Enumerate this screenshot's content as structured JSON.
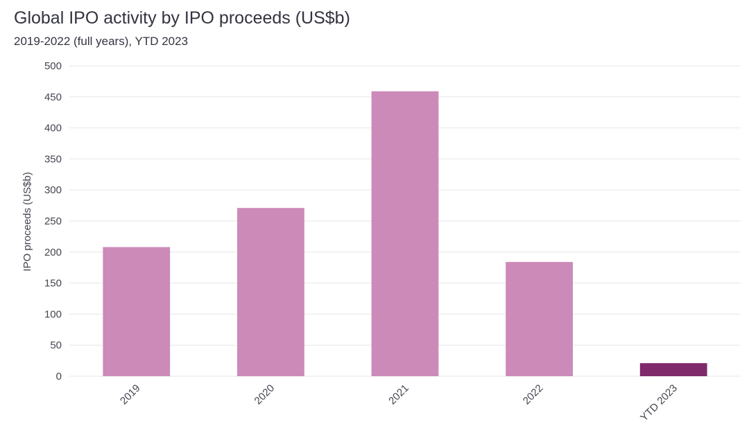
{
  "chart_data": {
    "type": "bar",
    "title": "Global IPO activity by IPO proceeds (US$b)",
    "subtitle": "2019-2022 (full years), YTD 2023",
    "xlabel": "",
    "ylabel": "IPO proceeds (US$b)",
    "ylim": [
      0,
      500
    ],
    "yticks": [
      0,
      50,
      100,
      150,
      200,
      250,
      300,
      350,
      400,
      450,
      500
    ],
    "grid": true,
    "categories": [
      "2019",
      "2020",
      "2021",
      "2022",
      "YTD 2023"
    ],
    "values": [
      208,
      271,
      459,
      184,
      21
    ],
    "colors": [
      "#cc8ab8",
      "#cc8ab8",
      "#cc8ab8",
      "#cc8ab8",
      "#7f2a6b"
    ]
  }
}
